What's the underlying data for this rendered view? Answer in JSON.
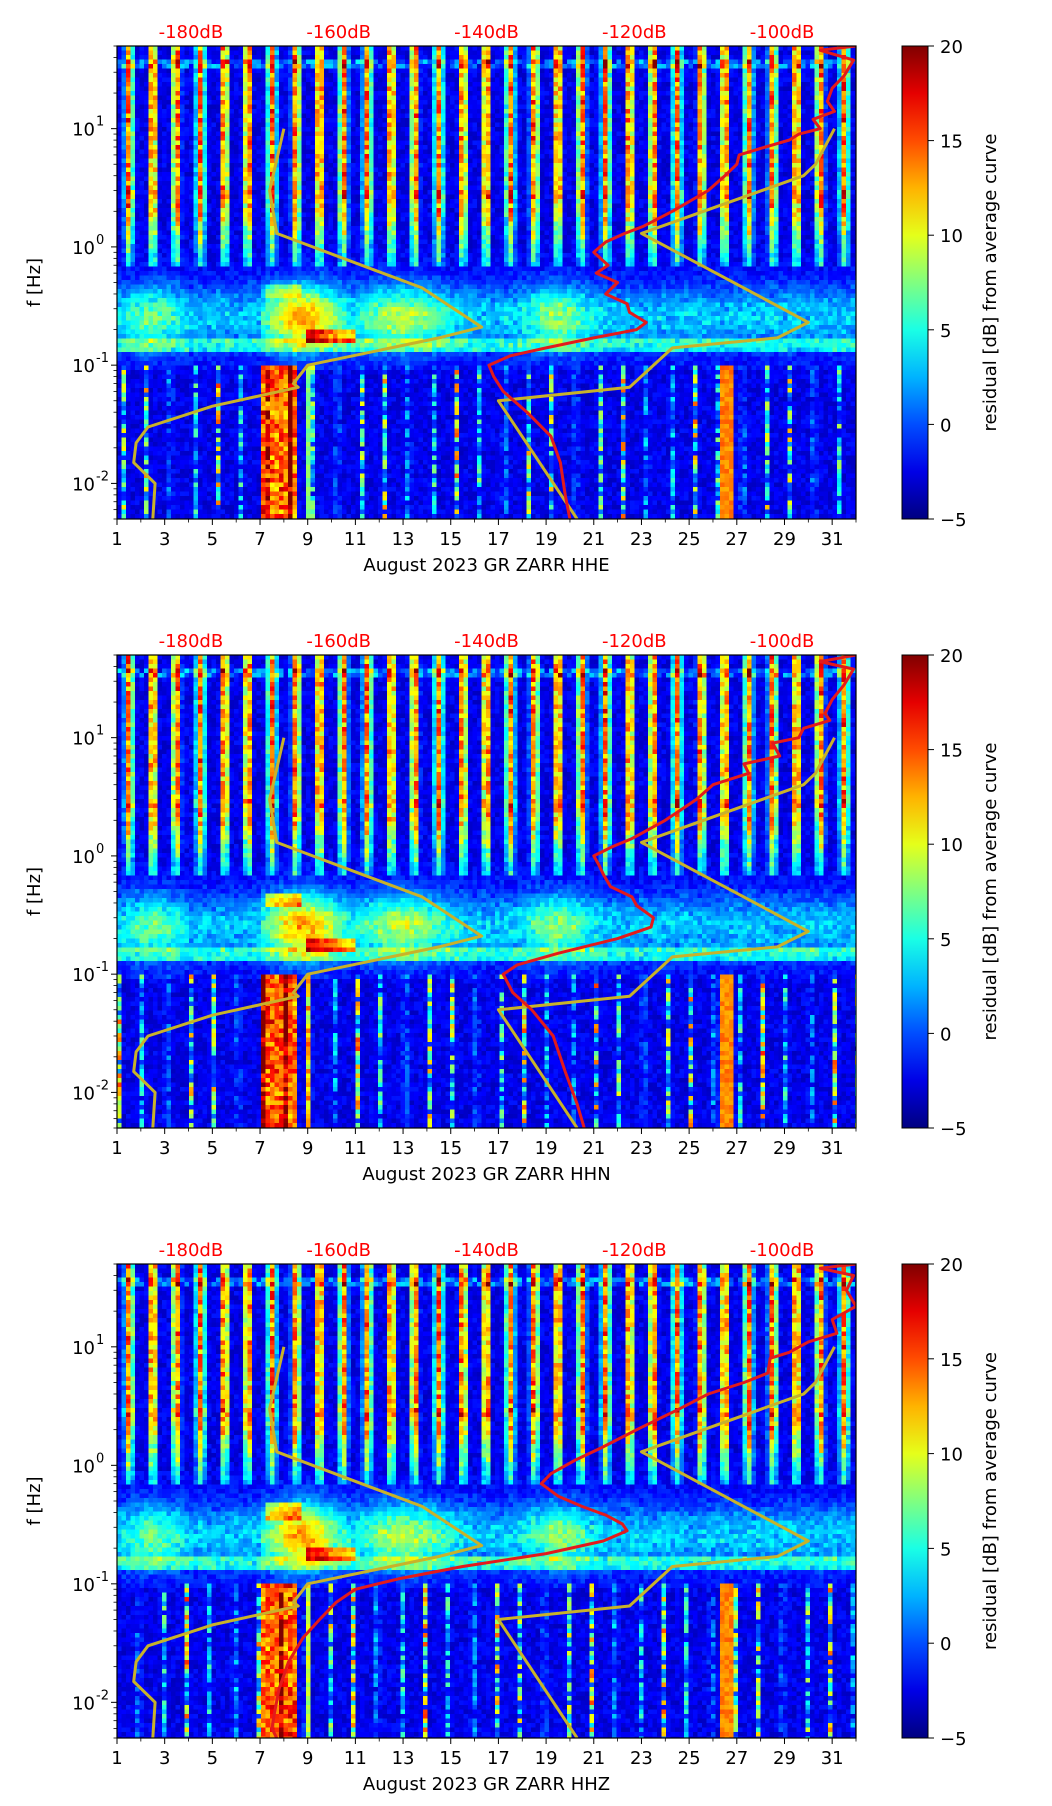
{
  "colors": {
    "db_label": "#ff0000",
    "red_curve": "#e31a1c",
    "model_curve": "#c8b22a",
    "axis": "#000000"
  },
  "colormap": "jet",
  "chart_data": [
    {
      "type": "heatmap",
      "component": "HHE",
      "xlabel": "August 2023 GR ZARR  HHE",
      "ylabel": "f [Hz]",
      "xlim": [
        1,
        32
      ],
      "ylim_hz": [
        0.005,
        50
      ],
      "yscale": "log",
      "xticks": [
        "1",
        "3",
        "5",
        "7",
        "9",
        "11",
        "13",
        "15",
        "17",
        "19",
        "21",
        "23",
        "25",
        "27",
        "29",
        "31"
      ],
      "yticks": [
        {
          "label": "10",
          "exp": "-2",
          "value": 0.01
        },
        {
          "label": "10",
          "exp": "-1",
          "value": 0.1
        },
        {
          "label": "10",
          "exp": "0",
          "value": 1
        },
        {
          "label": "10",
          "exp": "1",
          "value": 10
        }
      ],
      "db_axis": {
        "ticks": [
          "-180dB",
          "-160dB",
          "-140dB",
          "-120dB",
          "-100dB"
        ],
        "values": [
          -180,
          -160,
          -140,
          -120,
          -100
        ],
        "day_positions": [
          4.1,
          10.3,
          16.5,
          22.7,
          28.9
        ]
      },
      "colorbar": {
        "label": "residual [dB] from average curve",
        "min": -5,
        "max": 20,
        "ticks": [
          "20",
          "15",
          "10",
          "5",
          "0",
          "−5"
        ]
      },
      "red_curve_day": [
        [
          32,
          50
        ],
        [
          30.5,
          46
        ],
        [
          31.9,
          38
        ],
        [
          31.5,
          28
        ],
        [
          31,
          22
        ],
        [
          30.8,
          17
        ],
        [
          31.1,
          14
        ],
        [
          30.2,
          12
        ],
        [
          30.5,
          10
        ],
        [
          29.6,
          9
        ],
        [
          29.2,
          8
        ],
        [
          28.2,
          7
        ],
        [
          27.1,
          6
        ],
        [
          27.0,
          5
        ],
        [
          26.5,
          4
        ],
        [
          25.8,
          3
        ],
        [
          24.3,
          2
        ],
        [
          23.1,
          1.5
        ],
        [
          22.3,
          1.3
        ],
        [
          21.5,
          1.1
        ],
        [
          21.0,
          0.9
        ],
        [
          21.6,
          0.7
        ],
        [
          21.1,
          0.6
        ],
        [
          22.0,
          0.5
        ],
        [
          21.5,
          0.4
        ],
        [
          22.4,
          0.33
        ],
        [
          22.5,
          0.28
        ],
        [
          23.2,
          0.23
        ],
        [
          22.8,
          0.2
        ],
        [
          21.0,
          0.17
        ],
        [
          19.0,
          0.14
        ],
        [
          17.5,
          0.12
        ],
        [
          16.6,
          0.1
        ],
        [
          16.8,
          0.08
        ],
        [
          17.2,
          0.06
        ],
        [
          18.2,
          0.04
        ],
        [
          19.2,
          0.025
        ],
        [
          19.6,
          0.015
        ],
        [
          19.8,
          0.008
        ],
        [
          20.0,
          0.005
        ]
      ],
      "noise_model_curves_day": [
        [
          [
            8,
            10
          ],
          [
            7.4,
            3
          ],
          [
            7.7,
            1.3
          ],
          [
            13.8,
            0.45
          ],
          [
            16.3,
            0.21
          ],
          [
            14.5,
            0.17
          ],
          [
            9.0,
            0.1
          ],
          [
            8.4,
            0.07
          ],
          [
            8.6,
            0.065
          ],
          [
            5.0,
            0.045
          ],
          [
            2.3,
            0.03
          ],
          [
            1.8,
            0.022
          ],
          [
            1.7,
            0.015
          ],
          [
            2.6,
            0.01
          ],
          [
            2.5,
            0.005
          ]
        ],
        [
          [
            31.1,
            10
          ],
          [
            30.3,
            5
          ],
          [
            29.8,
            4
          ],
          [
            23.0,
            1.3
          ],
          [
            30.0,
            0.23
          ],
          [
            28.7,
            0.17
          ],
          [
            24.3,
            0.14
          ],
          [
            22.5,
            0.065
          ],
          [
            17.0,
            0.05
          ],
          [
            20.3,
            0.005
          ]
        ]
      ]
    },
    {
      "type": "heatmap",
      "component": "HHN",
      "xlabel": "August 2023 GR ZARR  HHN",
      "ylabel": "f [Hz]",
      "xlim": [
        1,
        32
      ],
      "ylim_hz": [
        0.005,
        50
      ],
      "yscale": "log",
      "xticks": [
        "1",
        "3",
        "5",
        "7",
        "9",
        "11",
        "13",
        "15",
        "17",
        "19",
        "21",
        "23",
        "25",
        "27",
        "29",
        "31"
      ],
      "yticks": [
        {
          "label": "10",
          "exp": "-2",
          "value": 0.01
        },
        {
          "label": "10",
          "exp": "-1",
          "value": 0.1
        },
        {
          "label": "10",
          "exp": "0",
          "value": 1
        },
        {
          "label": "10",
          "exp": "1",
          "value": 10
        }
      ],
      "db_axis": {
        "ticks": [
          "-180dB",
          "-160dB",
          "-140dB",
          "-120dB",
          "-100dB"
        ],
        "values": [
          -180,
          -160,
          -140,
          -120,
          -100
        ],
        "day_positions": [
          4.1,
          10.3,
          16.5,
          22.7,
          28.9
        ]
      },
      "colorbar": {
        "label": "residual [dB] from average curve",
        "min": -5,
        "max": 20,
        "ticks": [
          "20",
          "15",
          "10",
          "5",
          "0",
          "−5"
        ]
      },
      "red_curve_day": [
        [
          32,
          50
        ],
        [
          30.5,
          44
        ],
        [
          31.9,
          38
        ],
        [
          31.5,
          28
        ],
        [
          31,
          21
        ],
        [
          30.7,
          16
        ],
        [
          30.9,
          14
        ],
        [
          29.8,
          12
        ],
        [
          29.6,
          10
        ],
        [
          28.5,
          9
        ],
        [
          28.8,
          7
        ],
        [
          27.3,
          6
        ],
        [
          27.5,
          5
        ],
        [
          26.0,
          4
        ],
        [
          25.3,
          3
        ],
        [
          24.0,
          2
        ],
        [
          22.6,
          1.4
        ],
        [
          21.8,
          1.2
        ],
        [
          21.0,
          1.0
        ],
        [
          21.2,
          0.85
        ],
        [
          21.4,
          0.7
        ],
        [
          21.7,
          0.55
        ],
        [
          22.6,
          0.45
        ],
        [
          22.8,
          0.38
        ],
        [
          23.5,
          0.3
        ],
        [
          23.4,
          0.25
        ],
        [
          22.0,
          0.2
        ],
        [
          19.5,
          0.15
        ],
        [
          17.8,
          0.12
        ],
        [
          17.2,
          0.1
        ],
        [
          17.6,
          0.07
        ],
        [
          18.4,
          0.05
        ],
        [
          19.3,
          0.03
        ],
        [
          19.8,
          0.015
        ],
        [
          20.3,
          0.008
        ],
        [
          20.6,
          0.005
        ]
      ],
      "noise_model_curves_day": [
        [
          [
            8,
            10
          ],
          [
            7.4,
            3
          ],
          [
            7.7,
            1.3
          ],
          [
            13.8,
            0.45
          ],
          [
            16.3,
            0.21
          ],
          [
            14.5,
            0.17
          ],
          [
            9.0,
            0.1
          ],
          [
            8.4,
            0.07
          ],
          [
            8.6,
            0.065
          ],
          [
            5.0,
            0.045
          ],
          [
            2.3,
            0.03
          ],
          [
            1.8,
            0.022
          ],
          [
            1.7,
            0.015
          ],
          [
            2.6,
            0.01
          ],
          [
            2.5,
            0.005
          ]
        ],
        [
          [
            31.1,
            10
          ],
          [
            30.3,
            5
          ],
          [
            29.8,
            4
          ],
          [
            23.0,
            1.3
          ],
          [
            30.0,
            0.23
          ],
          [
            28.7,
            0.17
          ],
          [
            24.3,
            0.14
          ],
          [
            22.5,
            0.065
          ],
          [
            17.0,
            0.05
          ],
          [
            20.3,
            0.005
          ]
        ]
      ]
    },
    {
      "type": "heatmap",
      "component": "HHZ",
      "xlabel": "August 2023 GR ZARR  HHZ",
      "ylabel": "f [Hz]",
      "xlim": [
        1,
        32
      ],
      "ylim_hz": [
        0.005,
        50
      ],
      "yscale": "log",
      "xticks": [
        "1",
        "3",
        "5",
        "7",
        "9",
        "11",
        "13",
        "15",
        "17",
        "19",
        "21",
        "23",
        "25",
        "27",
        "29",
        "31"
      ],
      "yticks": [
        {
          "label": "10",
          "exp": "-2",
          "value": 0.01
        },
        {
          "label": "10",
          "exp": "-1",
          "value": 0.1
        },
        {
          "label": "10",
          "exp": "0",
          "value": 1
        },
        {
          "label": "10",
          "exp": "1",
          "value": 10
        }
      ],
      "db_axis": {
        "ticks": [
          "-180dB",
          "-160dB",
          "-140dB",
          "-120dB",
          "-100dB"
        ],
        "values": [
          -180,
          -160,
          -140,
          -120,
          -100
        ],
        "day_positions": [
          4.1,
          10.3,
          16.5,
          22.7,
          28.9
        ]
      },
      "colorbar": {
        "label": "residual [dB] from average curve",
        "min": -5,
        "max": 20,
        "ticks": [
          "20",
          "15",
          "10",
          "5",
          "0",
          "−5"
        ]
      },
      "red_curve_day": [
        [
          32,
          50
        ],
        [
          30.5,
          46
        ],
        [
          31.9,
          40
        ],
        [
          31.6,
          30
        ],
        [
          32.0,
          22
        ],
        [
          31.0,
          17
        ],
        [
          31.2,
          13
        ],
        [
          30.0,
          11
        ],
        [
          29.2,
          9
        ],
        [
          28.4,
          8
        ],
        [
          28.3,
          6
        ],
        [
          27.3,
          5
        ],
        [
          25.8,
          4
        ],
        [
          24.6,
          3
        ],
        [
          22.8,
          2
        ],
        [
          21.3,
          1.4
        ],
        [
          20.2,
          1.1
        ],
        [
          19.2,
          0.85
        ],
        [
          18.8,
          0.7
        ],
        [
          19.5,
          0.55
        ],
        [
          20.5,
          0.45
        ],
        [
          21.5,
          0.38
        ],
        [
          22.2,
          0.32
        ],
        [
          22.4,
          0.28
        ],
        [
          21.4,
          0.23
        ],
        [
          19.0,
          0.18
        ],
        [
          15.5,
          0.14
        ],
        [
          12.8,
          0.11
        ],
        [
          11.0,
          0.09
        ],
        [
          10.2,
          0.07
        ],
        [
          9.5,
          0.05
        ],
        [
          8.8,
          0.035
        ],
        [
          8.2,
          0.022
        ],
        [
          7.8,
          0.013
        ],
        [
          7.6,
          0.008
        ],
        [
          7.5,
          0.006
        ],
        [
          7.7,
          0.005
        ]
      ],
      "noise_model_curves_day": [
        [
          [
            8,
            10
          ],
          [
            7.4,
            3
          ],
          [
            7.7,
            1.3
          ],
          [
            13.8,
            0.45
          ],
          [
            16.3,
            0.21
          ],
          [
            14.5,
            0.17
          ],
          [
            9.0,
            0.1
          ],
          [
            8.4,
            0.07
          ],
          [
            8.6,
            0.065
          ],
          [
            5.0,
            0.045
          ],
          [
            2.3,
            0.03
          ],
          [
            1.8,
            0.022
          ],
          [
            1.7,
            0.015
          ],
          [
            2.6,
            0.01
          ],
          [
            2.5,
            0.005
          ]
        ],
        [
          [
            31.1,
            10
          ],
          [
            30.3,
            5
          ],
          [
            29.8,
            4
          ],
          [
            23.0,
            1.3
          ],
          [
            30.0,
            0.23
          ],
          [
            28.7,
            0.17
          ],
          [
            24.3,
            0.14
          ],
          [
            22.5,
            0.065
          ],
          [
            17.0,
            0.05
          ],
          [
            20.3,
            0.005
          ]
        ]
      ]
    }
  ]
}
